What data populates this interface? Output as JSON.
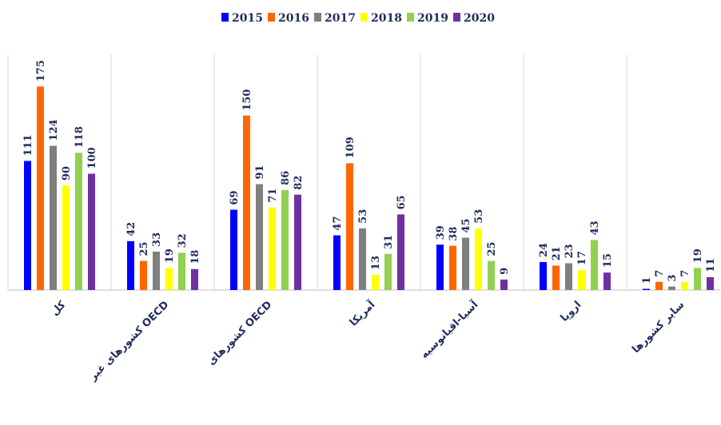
{
  "chart_data": {
    "type": "bar",
    "categories": [
      "کل",
      "کشورهای غیر OECD",
      "کشورهای OECD",
      "آمریکا",
      "آسیا-اقیانوسیه",
      "اروپا",
      "سایر کشورها"
    ],
    "series": [
      {
        "name": "2015",
        "color": "#0000ff",
        "values": [
          111,
          42,
          69,
          47,
          39,
          24,
          1
        ]
      },
      {
        "name": "2016",
        "color": "#ff6600",
        "values": [
          175,
          25,
          150,
          109,
          38,
          21,
          7
        ]
      },
      {
        "name": "2017",
        "color": "#7f7f7f",
        "values": [
          124,
          33,
          91,
          53,
          45,
          23,
          3
        ]
      },
      {
        "name": "2018",
        "color": "#ffff00",
        "values": [
          90,
          19,
          71,
          13,
          53,
          17,
          7
        ]
      },
      {
        "name": "2019",
        "color": "#92d050",
        "values": [
          118,
          32,
          86,
          31,
          25,
          43,
          19
        ]
      },
      {
        "name": "2020",
        "color": "#7030a0",
        "values": [
          100,
          18,
          82,
          65,
          9,
          15,
          11
        ]
      }
    ],
    "ylim": [
      0,
      180
    ],
    "legend": "top"
  }
}
